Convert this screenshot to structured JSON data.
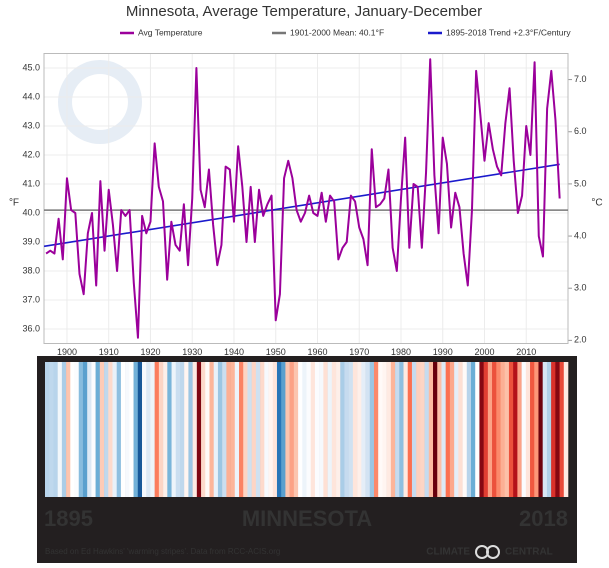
{
  "chart_data": {
    "type": "line",
    "title": "Minnesota, Average Temperature, January-December",
    "y_label": "°F",
    "y2_label": "°C",
    "x": [
      1895,
      1896,
      1897,
      1898,
      1899,
      1900,
      1901,
      1902,
      1903,
      1904,
      1905,
      1906,
      1907,
      1908,
      1909,
      1910,
      1911,
      1912,
      1913,
      1914,
      1915,
      1916,
      1917,
      1918,
      1919,
      1920,
      1921,
      1922,
      1923,
      1924,
      1925,
      1926,
      1927,
      1928,
      1929,
      1930,
      1931,
      1932,
      1933,
      1934,
      1935,
      1936,
      1937,
      1938,
      1939,
      1940,
      1941,
      1942,
      1943,
      1944,
      1945,
      1946,
      1947,
      1948,
      1949,
      1950,
      1951,
      1952,
      1953,
      1954,
      1955,
      1956,
      1957,
      1958,
      1959,
      1960,
      1961,
      1962,
      1963,
      1964,
      1965,
      1966,
      1967,
      1968,
      1969,
      1970,
      1971,
      1972,
      1973,
      1974,
      1975,
      1976,
      1977,
      1978,
      1979,
      1980,
      1981,
      1982,
      1983,
      1984,
      1985,
      1986,
      1987,
      1988,
      1989,
      1990,
      1991,
      1992,
      1993,
      1994,
      1995,
      1996,
      1997,
      1998,
      1999,
      2000,
      2001,
      2002,
      2003,
      2004,
      2005,
      2006,
      2007,
      2008,
      2009,
      2010,
      2011,
      2012,
      2013,
      2014,
      2015,
      2016,
      2017,
      2018
    ],
    "series": [
      {
        "name": "Avg Temperature",
        "color": "#9b009b",
        "values": [
          38.6,
          38.7,
          38.6,
          39.8,
          38.4,
          41.2,
          40.1,
          40.0,
          37.9,
          37.2,
          39.3,
          40.0,
          37.5,
          41.1,
          38.7,
          40.8,
          39.6,
          38.0,
          40.1,
          39.9,
          40.1,
          37.6,
          35.7,
          39.9,
          39.3,
          39.7,
          42.4,
          40.9,
          40.4,
          37.7,
          39.7,
          38.9,
          38.7,
          40.3,
          38.2,
          40.5,
          45.0,
          40.8,
          40.2,
          41.5,
          39.6,
          38.2,
          38.9,
          41.6,
          41.5,
          39.7,
          42.3,
          40.9,
          39.0,
          40.9,
          39.0,
          40.8,
          39.9,
          40.3,
          40.6,
          36.3,
          37.2,
          41.2,
          41.8,
          41.2,
          40.1,
          39.7,
          40.0,
          40.6,
          40.0,
          39.9,
          40.7,
          39.7,
          40.6,
          40.4,
          38.4,
          38.8,
          39.0,
          40.6,
          40.4,
          39.5,
          39.1,
          38.2,
          42.2,
          40.2,
          40.3,
          40.5,
          41.5,
          38.8,
          38.0,
          40.5,
          42.6,
          38.8,
          41.0,
          40.9,
          38.8,
          41.4,
          45.3,
          41.3,
          39.3,
          42.6,
          41.7,
          39.5,
          40.7,
          40.2,
          38.6,
          37.5,
          40.1,
          44.9,
          43.4,
          41.8,
          43.1,
          42.2,
          41.6,
          41.3,
          43.1,
          44.3,
          41.8,
          40.0,
          40.6,
          43.0,
          42.0,
          45.2,
          39.2,
          38.5,
          43.6,
          44.9,
          43.2,
          40.5
        ]
      }
    ],
    "mean": {
      "name": "1901-2000 Mean: 40.1°F",
      "color": "#777777",
      "value": 40.1
    },
    "trend": {
      "name": "1895-2018 Trend +2.3°F/Century",
      "color": "#1a1acc",
      "start": 38.85,
      "end": 41.68
    },
    "xlim": [
      1894.5,
      2020
    ],
    "xticks": [
      1900,
      1910,
      1920,
      1930,
      1940,
      1950,
      1960,
      1970,
      1980,
      1990,
      2000,
      2010
    ],
    "ylim": [
      35.5,
      45.5
    ],
    "yticks": [
      {
        "value": 36,
        "label": "36.0"
      },
      {
        "value": 37,
        "label": "37.0"
      },
      {
        "value": 38,
        "label": "38.0"
      },
      {
        "value": 39,
        "label": "39.0"
      },
      {
        "value": 40,
        "label": "40.0"
      },
      {
        "value": 41,
        "label": "41.0"
      },
      {
        "value": 42,
        "label": "42.0"
      },
      {
        "value": 43,
        "label": "43.0"
      },
      {
        "value": 44,
        "label": "44.0"
      },
      {
        "value": 45,
        "label": "45.0"
      }
    ],
    "y2lim": [
      1.94,
      7.5
    ],
    "y2ticks": [
      {
        "value": 2,
        "label": "2.0"
      },
      {
        "value": 3,
        "label": "3.0"
      },
      {
        "value": 4,
        "label": "4.0"
      },
      {
        "value": 5,
        "label": "5.0"
      },
      {
        "value": 6,
        "label": "6.0"
      },
      {
        "value": 7,
        "label": "7.0"
      }
    ],
    "grid": true,
    "stripes": {
      "start_label": "1895",
      "region": "MINNESOTA",
      "end_label": "2018",
      "credit": "Based on Ed Hawkins' 'warming stripes'. Data from RCC-ACIS.org",
      "brand_left": "CLIMATE",
      "brand_right": "CENTRAL"
    }
  }
}
